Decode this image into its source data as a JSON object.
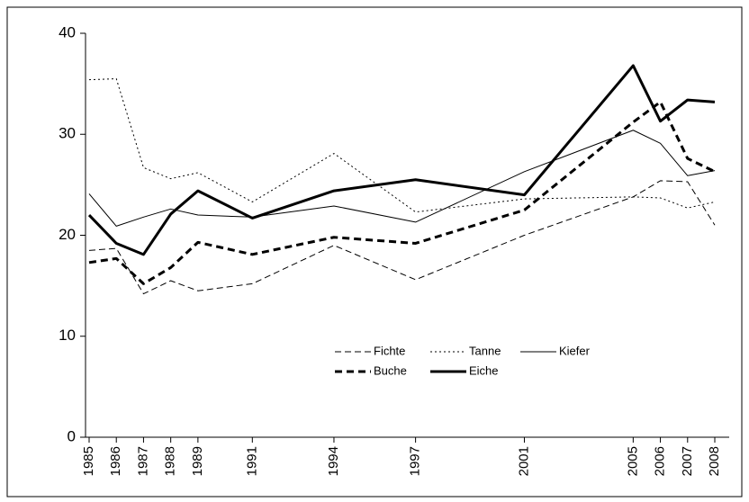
{
  "chart_data": {
    "type": "line",
    "x": [
      1985,
      1986,
      1987,
      1988,
      1989,
      1991,
      1994,
      1997,
      2001,
      2005,
      2006,
      2007,
      2008
    ],
    "xlim": [
      1985,
      2008
    ],
    "xticks": [
      1985,
      1986,
      1987,
      1988,
      1989,
      1991,
      1994,
      1997,
      2001,
      2005,
      2006,
      2007,
      2008
    ],
    "ylim": [
      0,
      40
    ],
    "yticks": [
      0,
      10,
      20,
      30,
      40
    ],
    "series": [
      {
        "name": "Fichte",
        "color": "#000000",
        "width": 1,
        "dash": "7 4",
        "values": [
          18.5,
          18.7,
          14.2,
          15.5,
          14.5,
          15.2,
          19.0,
          15.6,
          20.0,
          23.8,
          25.4,
          25.3,
          21.0
        ]
      },
      {
        "name": "Tanne",
        "color": "#000000",
        "width": 1,
        "dash": "2 3",
        "values": [
          35.4,
          35.5,
          26.7,
          25.6,
          26.2,
          23.3,
          28.1,
          22.3,
          23.6,
          23.8,
          23.7,
          22.7,
          23.3
        ]
      },
      {
        "name": "Kiefer",
        "color": "#000000",
        "width": 1,
        "dash": "none",
        "values": [
          24.1,
          20.9,
          21.8,
          22.6,
          22.0,
          21.8,
          22.9,
          21.3,
          26.3,
          30.4,
          29.1,
          25.9,
          26.4
        ]
      },
      {
        "name": "Buche",
        "color": "#000000",
        "width": 3,
        "dash": "8 5",
        "values": [
          17.3,
          17.7,
          15.2,
          16.8,
          19.3,
          18.1,
          19.8,
          19.2,
          22.5,
          31.2,
          33.2,
          27.6,
          26.3
        ]
      },
      {
        "name": "Eiche",
        "color": "#000000",
        "width": 3,
        "dash": "none",
        "values": [
          22.0,
          19.2,
          18.1,
          22.1,
          24.4,
          21.7,
          24.4,
          25.5,
          24.0,
          36.8,
          31.3,
          33.4,
          33.2
        ]
      }
    ]
  }
}
